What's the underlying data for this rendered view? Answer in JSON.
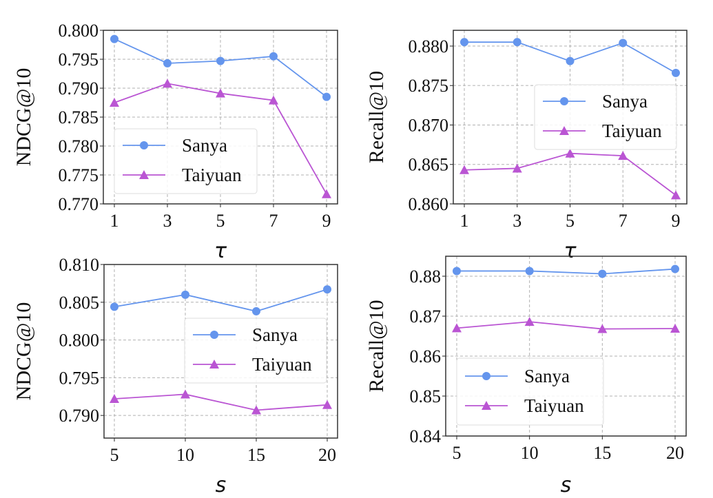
{
  "colors": {
    "Sanya": "#6495ED",
    "Taiyuan": "#BA55D3"
  },
  "chart_data": [
    {
      "type": "line",
      "xlabel": "τ",
      "ylabel": "NDCG@10",
      "x": [
        1,
        3,
        5,
        7,
        9
      ],
      "xticks": [
        "1",
        "3",
        "5",
        "7",
        "9"
      ],
      "ylim": [
        0.77,
        0.8
      ],
      "yticks": [
        "0.770",
        "0.775",
        "0.780",
        "0.785",
        "0.790",
        "0.795",
        "0.800"
      ],
      "grid": true,
      "legend": "lower-left",
      "series": [
        {
          "name": "Sanya",
          "marker": "circle",
          "values": [
            0.7985,
            0.7943,
            0.7947,
            0.7955,
            0.7885
          ]
        },
        {
          "name": "Taiyuan",
          "marker": "triangle",
          "values": [
            0.7875,
            0.7908,
            0.7891,
            0.7879,
            0.7717
          ]
        }
      ]
    },
    {
      "type": "line",
      "xlabel": "τ",
      "ylabel": "Recall@10",
      "x": [
        1,
        3,
        5,
        7,
        9
      ],
      "xticks": [
        "1",
        "3",
        "5",
        "7",
        "9"
      ],
      "ylim": [
        0.86,
        0.882
      ],
      "yticks": [
        "0.860",
        "0.865",
        "0.870",
        "0.875",
        "0.880"
      ],
      "grid": true,
      "legend": "center-right",
      "series": [
        {
          "name": "Sanya",
          "marker": "circle",
          "values": [
            0.8805,
            0.8805,
            0.8781,
            0.8804,
            0.8766
          ]
        },
        {
          "name": "Taiyuan",
          "marker": "triangle",
          "values": [
            0.8643,
            0.8645,
            0.8664,
            0.8661,
            0.8611
          ]
        }
      ]
    },
    {
      "type": "line",
      "xlabel": "s",
      "ylabel": "NDCG@10",
      "x": [
        5,
        10,
        15,
        20
      ],
      "xticks": [
        "5",
        "10",
        "15",
        "20"
      ],
      "ylim": [
        0.787,
        0.81
      ],
      "yticks": [
        "0.790",
        "0.795",
        "0.800",
        "0.805",
        "0.810"
      ],
      "grid": true,
      "legend": "center-right",
      "series": [
        {
          "name": "Sanya",
          "marker": "circle",
          "values": [
            0.8044,
            0.806,
            0.8038,
            0.8067
          ]
        },
        {
          "name": "Taiyuan",
          "marker": "triangle",
          "values": [
            0.7922,
            0.7928,
            0.7907,
            0.7914
          ]
        }
      ]
    },
    {
      "type": "line",
      "xlabel": "s",
      "ylabel": "Recall@10",
      "x": [
        5,
        10,
        15,
        20
      ],
      "xticks": [
        "5",
        "10",
        "15",
        "20"
      ],
      "ylim": [
        0.84,
        0.885
      ],
      "yticks": [
        "0.84",
        "0.85",
        "0.86",
        "0.87",
        "0.88"
      ],
      "grid": true,
      "legend": "lower-left",
      "series": [
        {
          "name": "Sanya",
          "marker": "circle",
          "values": [
            0.8813,
            0.8813,
            0.8806,
            0.8818
          ]
        },
        {
          "name": "Taiyuan",
          "marker": "triangle",
          "values": [
            0.867,
            0.8686,
            0.8668,
            0.8669
          ]
        }
      ]
    }
  ]
}
